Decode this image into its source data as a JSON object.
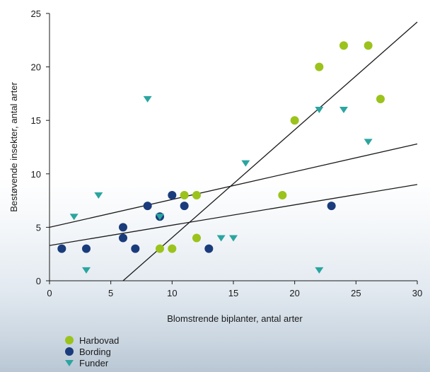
{
  "chart_data": {
    "type": "scatter",
    "title": "",
    "xlabel": "Blomstrende biplanter, antal arter",
    "ylabel": "Bestøvende insekter, antal arter",
    "xlim": [
      0,
      30
    ],
    "ylim": [
      0,
      25
    ],
    "xticks": [
      "0",
      "5",
      "10",
      "15",
      "20",
      "25",
      "30"
    ],
    "yticks": [
      "0",
      "5",
      "10",
      "15",
      "20",
      "25"
    ],
    "grid": false,
    "legend": "bottom-left",
    "series": [
      {
        "name": "Harbovad",
        "marker": "circle",
        "color": "#9bc31c",
        "points": [
          [
            9,
            3
          ],
          [
            10,
            3
          ],
          [
            11,
            8
          ],
          [
            12,
            8
          ],
          [
            12,
            4
          ],
          [
            19,
            8
          ],
          [
            20,
            15
          ],
          [
            22,
            20
          ],
          [
            24,
            22
          ],
          [
            26,
            22
          ],
          [
            27,
            17
          ]
        ]
      },
      {
        "name": "Bording",
        "marker": "circle",
        "color": "#1a3c7c",
        "points": [
          [
            1,
            3
          ],
          [
            3,
            3
          ],
          [
            6,
            5
          ],
          [
            6,
            4
          ],
          [
            7,
            3
          ],
          [
            8,
            7
          ],
          [
            9,
            6
          ],
          [
            10,
            8
          ],
          [
            11,
            7
          ],
          [
            13,
            3
          ],
          [
            23,
            7
          ]
        ]
      },
      {
        "name": "Funder",
        "marker": "triangle-down",
        "color": "#2aa5a0",
        "points": [
          [
            2,
            6
          ],
          [
            3,
            1
          ],
          [
            4,
            8
          ],
          [
            8,
            17
          ],
          [
            9,
            6
          ],
          [
            14,
            4
          ],
          [
            15,
            4
          ],
          [
            16,
            11
          ],
          [
            22,
            16
          ],
          [
            22,
            1
          ],
          [
            24,
            16
          ],
          [
            26,
            13
          ]
        ]
      }
    ],
    "trendlines": [
      {
        "from": [
          6,
          0
        ],
        "to": [
          30,
          24.2
        ]
      },
      {
        "from": [
          0,
          5
        ],
        "to": [
          30,
          12.8
        ]
      },
      {
        "from": [
          0,
          3.3
        ],
        "to": [
          30,
          9
        ]
      }
    ]
  }
}
